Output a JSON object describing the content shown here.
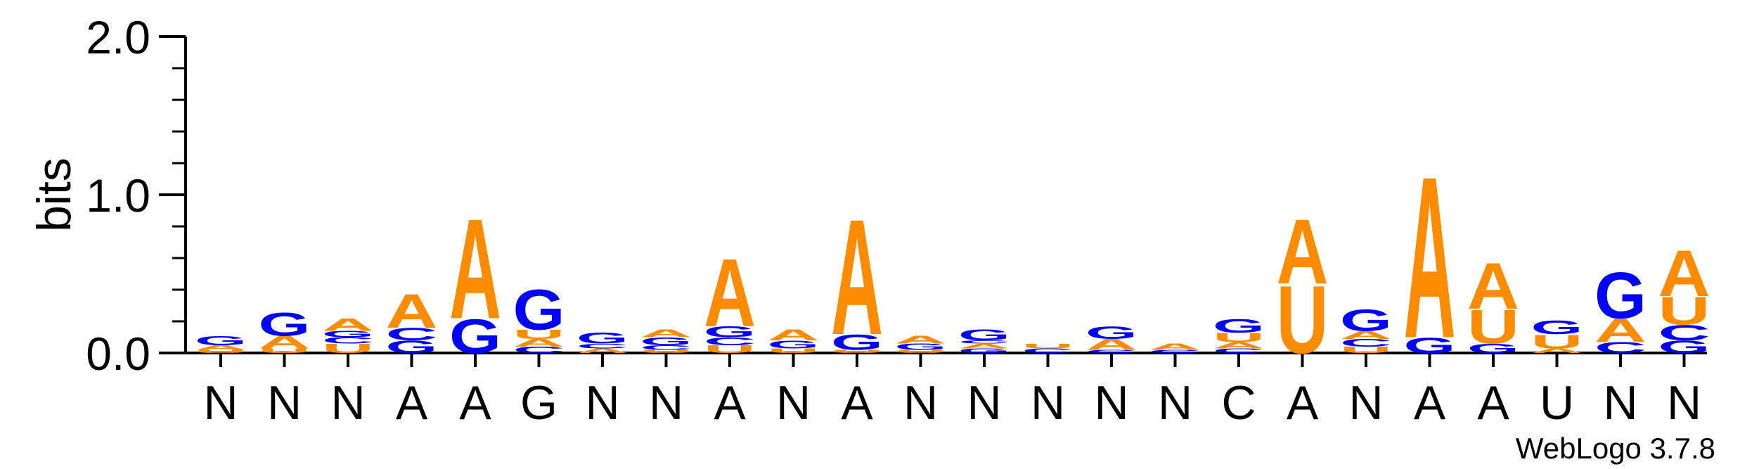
{
  "colors": {
    "A": "#ff8c00",
    "U": "#ff8c00",
    "G": "#0000ff",
    "C": "#0000ff",
    "axis": "#000000"
  },
  "chart_data": {
    "type": "sequence-logo",
    "title": "",
    "xlabel": "",
    "ylabel": "bits",
    "ylim": [
      0,
      2.0
    ],
    "yticks": [
      "0.0",
      "1.0",
      "2.0"
    ],
    "credit": "WebLogo 3.7.8",
    "positions": [
      {
        "consensus": "N",
        "stack": [
          [
            "U",
            0.02
          ],
          [
            "A",
            0.03
          ],
          [
            "G",
            0.06
          ]
        ]
      },
      {
        "consensus": "N",
        "stack": [
          [
            "U",
            0.03
          ],
          [
            "A",
            0.08
          ],
          [
            "G",
            0.15
          ]
        ]
      },
      {
        "consensus": "N",
        "stack": [
          [
            "U",
            0.06
          ],
          [
            "C",
            0.04
          ],
          [
            "G",
            0.04
          ],
          [
            "A",
            0.08
          ]
        ]
      },
      {
        "consensus": "A",
        "stack": [
          [
            "G",
            0.08
          ],
          [
            "C",
            0.08
          ],
          [
            "A",
            0.22
          ]
        ]
      },
      {
        "consensus": "A",
        "stack": [
          [
            "G",
            0.22
          ],
          [
            "A",
            0.65
          ]
        ]
      },
      {
        "consensus": "G",
        "stack": [
          [
            "C",
            0.04
          ],
          [
            "A",
            0.05
          ],
          [
            "U",
            0.06
          ],
          [
            "G",
            0.26
          ]
        ]
      },
      {
        "consensus": "N",
        "stack": [
          [
            "A",
            0.03
          ],
          [
            "C",
            0.03
          ],
          [
            "G",
            0.07
          ]
        ]
      },
      {
        "consensus": "N",
        "stack": [
          [
            "U",
            0.02
          ],
          [
            "C",
            0.03
          ],
          [
            "G",
            0.05
          ],
          [
            "A",
            0.05
          ]
        ]
      },
      {
        "consensus": "A",
        "stack": [
          [
            "U",
            0.05
          ],
          [
            "C",
            0.05
          ],
          [
            "G",
            0.07
          ],
          [
            "A",
            0.44
          ]
        ]
      },
      {
        "consensus": "N",
        "stack": [
          [
            "U",
            0.03
          ],
          [
            "G",
            0.05
          ],
          [
            "A",
            0.07
          ]
        ]
      },
      {
        "consensus": "A",
        "stack": [
          [
            "U",
            0.02
          ],
          [
            "G",
            0.1
          ],
          [
            "A",
            0.75
          ]
        ]
      },
      {
        "consensus": "N",
        "stack": [
          [
            "U",
            0.02
          ],
          [
            "G",
            0.04
          ],
          [
            "A",
            0.05
          ]
        ]
      },
      {
        "consensus": "N",
        "stack": [
          [
            "G",
            0.03
          ],
          [
            "A",
            0.03
          ],
          [
            "C",
            0.02
          ],
          [
            "G",
            0.07
          ]
        ]
      },
      {
        "consensus": "N",
        "stack": [
          [
            "C",
            0.03
          ],
          [
            "U",
            0.03
          ]
        ]
      },
      {
        "consensus": "N",
        "stack": [
          [
            "C",
            0.02
          ],
          [
            "A",
            0.07
          ],
          [
            "G",
            0.08
          ]
        ]
      },
      {
        "consensus": "N",
        "stack": [
          [
            "C",
            0.02
          ],
          [
            "A",
            0.04
          ]
        ]
      },
      {
        "consensus": "C",
        "stack": [
          [
            "C",
            0.03
          ],
          [
            "A",
            0.04
          ],
          [
            "U",
            0.06
          ],
          [
            "G",
            0.09
          ]
        ]
      },
      {
        "consensus": "A",
        "stack": [
          [
            "U",
            0.44
          ],
          [
            "A",
            0.42
          ]
        ]
      },
      {
        "consensus": "N",
        "stack": [
          [
            "U",
            0.04
          ],
          [
            "C",
            0.05
          ],
          [
            "A",
            0.05
          ],
          [
            "G",
            0.14
          ]
        ]
      },
      {
        "consensus": "A",
        "stack": [
          [
            "G",
            0.1
          ],
          [
            "A",
            1.05
          ]
        ]
      },
      {
        "consensus": "A",
        "stack": [
          [
            "G",
            0.06
          ],
          [
            "U",
            0.22
          ],
          [
            "A",
            0.3
          ]
        ]
      },
      {
        "consensus": "U",
        "stack": [
          [
            "A",
            0.03
          ],
          [
            "U",
            0.09
          ],
          [
            "G",
            0.09
          ]
        ]
      },
      {
        "consensus": "N",
        "stack": [
          [
            "C",
            0.07
          ],
          [
            "A",
            0.15
          ],
          [
            "G",
            0.3
          ]
        ]
      },
      {
        "consensus": "N",
        "stack": [
          [
            "G",
            0.08
          ],
          [
            "C",
            0.1
          ],
          [
            "U",
            0.18
          ],
          [
            "A",
            0.3
          ]
        ]
      }
    ]
  }
}
